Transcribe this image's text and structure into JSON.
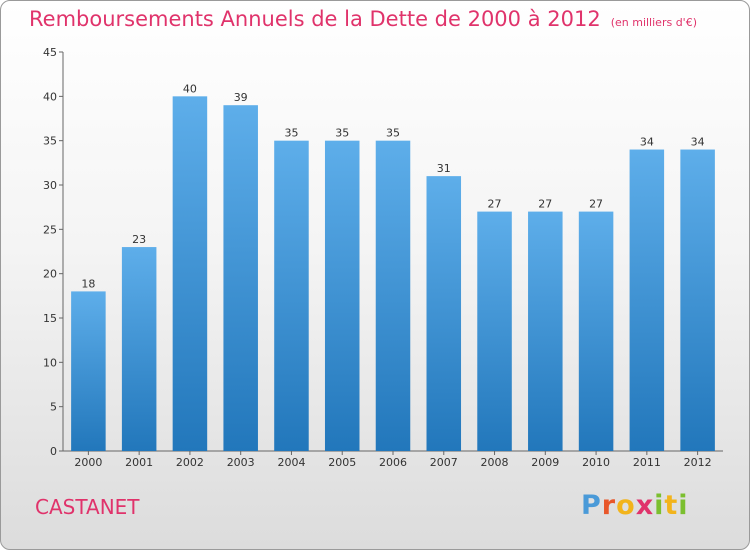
{
  "title": "Remboursements Annuels de la Dette de 2000 à 2012",
  "unit_note": "(en milliers d'€)",
  "location": "CASTANET",
  "logo": {
    "letters": [
      "P",
      "r",
      "o",
      "x",
      "i",
      "t",
      "i"
    ],
    "colors": [
      "#4a9ad8",
      "#e8572a",
      "#f2b41c",
      "#e0336b",
      "#7bbf2f",
      "#f2b41c",
      "#7bbf2f"
    ]
  },
  "colors": {
    "bar_top": "#5eaeea",
    "bar_bottom": "#2277bb",
    "title": "#e0336b"
  },
  "chart_data": {
    "type": "bar",
    "title": "Remboursements Annuels de la Dette de 2000 à 2012",
    "categories": [
      "2000",
      "2001",
      "2002",
      "2003",
      "2004",
      "2005",
      "2006",
      "2007",
      "2008",
      "2009",
      "2010",
      "2011",
      "2012"
    ],
    "values": [
      18,
      23,
      40,
      39,
      35,
      35,
      35,
      31,
      27,
      27,
      27,
      34,
      34
    ],
    "ylim": [
      0,
      45
    ],
    "yticks": [
      0,
      5,
      10,
      15,
      20,
      25,
      30,
      35,
      40,
      45
    ],
    "grid": false,
    "data_labels": true
  }
}
